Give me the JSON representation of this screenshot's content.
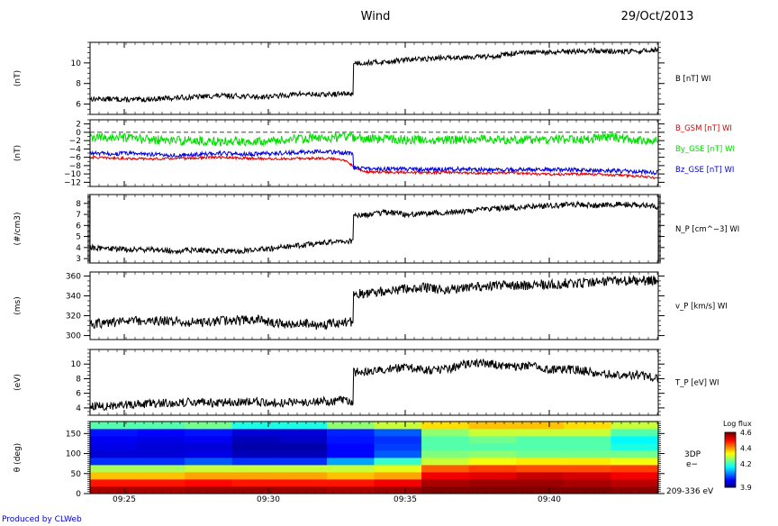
{
  "header": {
    "title": "Wind",
    "date": "29/Oct/2013"
  },
  "credit": "Produced by CLWeb",
  "x_ticks": [
    "09:25",
    "09:30",
    "09:35",
    "09:40"
  ],
  "chart_data": [
    {
      "type": "line",
      "ylabel": "(nT)",
      "ylim": [
        5,
        12
      ],
      "yticks": [
        6,
        8,
        10
      ],
      "series": [
        {
          "name": "B [nT] WI",
          "color": "#000000",
          "base": [
            6.5,
            6.5,
            6.4,
            6.5,
            6.6,
            6.7,
            6.8,
            6.8,
            6.7,
            6.8,
            7.0,
            6.9,
            7.0,
            10.0,
            10.1,
            10.3,
            10.4,
            10.5,
            10.6,
            10.6,
            10.9,
            11.0,
            11.0,
            11.1,
            11.2,
            11.1,
            11.1,
            11.3
          ],
          "noise": 0.25
        }
      ]
    },
    {
      "type": "line",
      "ylabel": "(nT)",
      "ylim": [
        -13,
        3
      ],
      "yticks": [
        2,
        0,
        -2,
        -4,
        -6,
        -8,
        -10,
        -12
      ],
      "dashed_zero": true,
      "series": [
        {
          "name": "B_GSM [nT] WI",
          "color": "#dd0000",
          "base": [
            -6.0,
            -6.2,
            -6.3,
            -6.4,
            -6.3,
            -6.2,
            -6.0,
            -6.2,
            -6.3,
            -6.4,
            -6.3,
            -6.2,
            -6.5,
            -9.5,
            -9.6,
            -9.6,
            -9.7,
            -9.6,
            -9.8,
            -9.8,
            -9.7,
            -10.0,
            -10.1,
            -10.0,
            -10.1,
            -10.3,
            -10.5,
            -11.0
          ],
          "noise": 0.3
        },
        {
          "name": "By_GSE [nT] WI",
          "color": "#00dd00",
          "base": [
            -1.5,
            -1.2,
            -1.5,
            -1.8,
            -2.0,
            -2.0,
            -2.3,
            -2.2,
            -2.0,
            -2.0,
            -1.5,
            -1.5,
            -1.0,
            -1.5,
            -1.5,
            -1.8,
            -1.8,
            -1.8,
            -1.8,
            -1.6,
            -1.8,
            -1.8,
            -1.6,
            -1.8,
            -1.5,
            -1.2,
            -2.0,
            -1.8
          ],
          "noise": 1.1
        },
        {
          "name": "Bz_GSE [nT] WI",
          "color": "#0000dd",
          "base": [
            -5.0,
            -5.2,
            -5.0,
            -5.3,
            -5.5,
            -5.4,
            -5.0,
            -5.3,
            -5.2,
            -5.0,
            -4.8,
            -4.5,
            -5.0,
            -8.5,
            -8.8,
            -8.8,
            -9.0,
            -8.8,
            -8.9,
            -9.0,
            -9.0,
            -9.0,
            -9.0,
            -9.0,
            -9.2,
            -9.2,
            -9.5,
            -9.7
          ],
          "noise": 0.5
        }
      ]
    },
    {
      "type": "line",
      "ylabel": "(#/cm3)",
      "ylim": [
        2.6,
        8.8
      ],
      "yticks": [
        3,
        4,
        5,
        6,
        7,
        8
      ],
      "series": [
        {
          "name": "N_P [cm^-3] WI",
          "color": "#000000",
          "base": [
            4.0,
            3.9,
            3.8,
            3.8,
            3.7,
            3.8,
            3.7,
            3.7,
            3.8,
            4.0,
            4.2,
            4.4,
            4.6,
            6.9,
            7.2,
            7.0,
            7.1,
            7.2,
            7.3,
            7.5,
            7.6,
            7.7,
            7.8,
            7.9,
            7.8,
            7.9,
            7.9,
            7.7
          ],
          "noise": 0.25
        }
      ]
    },
    {
      "type": "line",
      "ylabel": "(ms)",
      "ylim": [
        296,
        364
      ],
      "yticks": [
        300,
        320,
        340,
        360
      ],
      "series": [
        {
          "name": "v_P [km/s] WI",
          "color": "#000000",
          "base": [
            312,
            313,
            315,
            315,
            314,
            313,
            314,
            315,
            316,
            312,
            312,
            310,
            314,
            342,
            345,
            347,
            348,
            346,
            348,
            350,
            351,
            350,
            352,
            353,
            354,
            355,
            355,
            356
          ],
          "noise": 5
        }
      ]
    },
    {
      "type": "line",
      "ylabel": "(eV)",
      "ylim": [
        3,
        12
      ],
      "yticks": [
        4,
        6,
        8,
        10
      ],
      "series": [
        {
          "name": "T_P [eV] WI",
          "color": "#000000",
          "base": [
            4.2,
            4.3,
            4.5,
            4.6,
            4.7,
            4.8,
            4.7,
            4.8,
            4.8,
            4.7,
            4.8,
            4.9,
            5.0,
            8.9,
            9.2,
            9.6,
            9.2,
            9.3,
            10.2,
            10.1,
            9.6,
            9.8,
            9.2,
            9.3,
            8.8,
            8.6,
            8.5,
            8.0
          ],
          "noise": 0.6
        }
      ]
    },
    {
      "type": "heatmap",
      "ylabel": "θ (deg)",
      "ylim": [
        0,
        180
      ],
      "yticks": [
        0,
        50,
        100,
        150
      ],
      "rows": 10,
      "cols": 12,
      "series_label": "3DP e−",
      "energy_label": "209-336 eV",
      "colorbar": {
        "title": "Log flux",
        "min": 3.9,
        "max": 4.6,
        "ticks": [
          3.9,
          4.2,
          4.4,
          4.6
        ]
      },
      "values": [
        [
          4.57,
          4.57,
          4.58,
          4.58,
          4.58,
          4.57,
          4.58,
          4.6,
          4.6,
          4.6,
          4.6,
          4.59
        ],
        [
          4.5,
          4.5,
          4.51,
          4.5,
          4.5,
          4.5,
          4.52,
          4.57,
          4.58,
          4.58,
          4.57,
          4.56
        ],
        [
          4.38,
          4.38,
          4.4,
          4.4,
          4.4,
          4.38,
          4.4,
          4.52,
          4.53,
          4.55,
          4.54,
          4.52
        ],
        [
          4.28,
          4.28,
          4.3,
          4.3,
          4.3,
          4.3,
          4.32,
          4.45,
          4.47,
          4.46,
          4.46,
          4.47
        ],
        [
          4.02,
          4.02,
          4.05,
          4.02,
          4.02,
          4.1,
          4.2,
          4.3,
          4.33,
          4.35,
          4.35,
          4.33
        ],
        [
          3.96,
          3.96,
          3.97,
          3.94,
          3.94,
          3.99,
          4.05,
          4.25,
          4.26,
          4.24,
          4.24,
          4.24
        ],
        [
          3.97,
          3.96,
          3.96,
          3.93,
          3.93,
          3.99,
          4.03,
          4.22,
          4.22,
          4.22,
          4.22,
          4.18
        ],
        [
          3.98,
          3.97,
          3.98,
          3.94,
          3.95,
          4.0,
          4.02,
          4.22,
          4.24,
          4.22,
          4.22,
          4.16
        ],
        [
          4.0,
          3.99,
          4.0,
          3.96,
          3.96,
          4.01,
          4.05,
          4.26,
          4.3,
          4.3,
          4.3,
          4.22
        ],
        [
          4.22,
          4.22,
          4.24,
          4.18,
          4.18,
          4.26,
          4.3,
          4.36,
          4.38,
          4.38,
          4.36,
          4.3
        ]
      ]
    }
  ]
}
